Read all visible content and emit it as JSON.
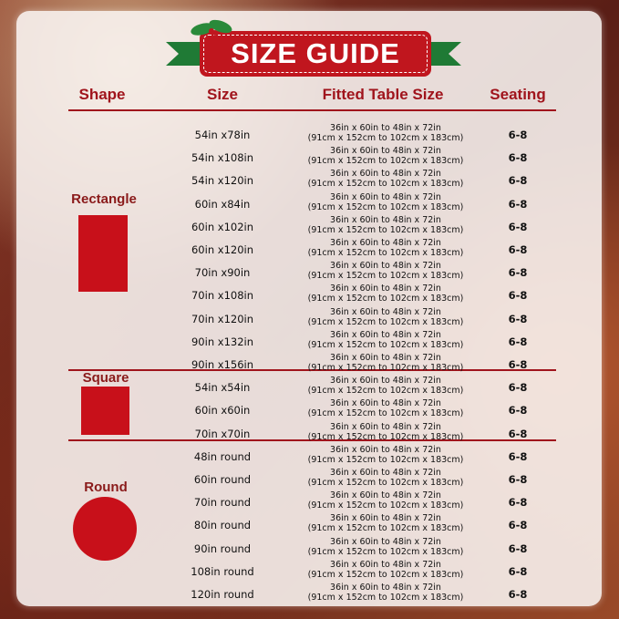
{
  "title": "SIZE GUIDE",
  "headers": {
    "shape": "Shape",
    "size": "Size",
    "fitted": "Fitted Table Size",
    "seating": "Seating"
  },
  "colors": {
    "accent": "#c0161e",
    "ribbon": "#1f7a35",
    "shape_fill": "#c8101a"
  },
  "groups": [
    {
      "label": "Rectangle",
      "shape": "rectangle",
      "rows": [
        {
          "size": "54in x78in",
          "fit1": "36in x 60in to 48in x 72in",
          "fit2": "(91cm x 152cm to 102cm x 183cm)",
          "seating": "6-8"
        },
        {
          "size": "54in x108in",
          "fit1": "36in x 60in to 48in x 72in",
          "fit2": "(91cm x 152cm to 102cm x 183cm)",
          "seating": "6-8"
        },
        {
          "size": "54in x120in",
          "fit1": "36in x 60in to 48in x 72in",
          "fit2": "(91cm x 152cm to 102cm x 183cm)",
          "seating": "6-8"
        },
        {
          "size": "60in x84in",
          "fit1": "36in x 60in to 48in x 72in",
          "fit2": "(91cm x 152cm to 102cm x 183cm)",
          "seating": "6-8"
        },
        {
          "size": "60in x102in",
          "fit1": "36in x 60in to 48in x 72in",
          "fit2": "(91cm x 152cm to 102cm x 183cm)",
          "seating": "6-8"
        },
        {
          "size": "60in x120in",
          "fit1": "36in x 60in to 48in x 72in",
          "fit2": "(91cm x 152cm to 102cm x 183cm)",
          "seating": "6-8"
        },
        {
          "size": "70in x90in",
          "fit1": "36in x 60in to 48in x 72in",
          "fit2": "(91cm x 152cm to 102cm x 183cm)",
          "seating": "6-8"
        },
        {
          "size": "70in x108in",
          "fit1": "36in x 60in to 48in x 72in",
          "fit2": "(91cm x 152cm to 102cm x 183cm)",
          "seating": "6-8"
        },
        {
          "size": "70in x120in",
          "fit1": "36in x 60in to 48in x 72in",
          "fit2": "(91cm x 152cm to 102cm x 183cm)",
          "seating": "6-8"
        },
        {
          "size": "90in x132in",
          "fit1": "36in x 60in to 48in x 72in",
          "fit2": "(91cm x 152cm to 102cm x 183cm)",
          "seating": "6-8"
        },
        {
          "size": "90in x156in",
          "fit1": "36in x 60in to 48in x 72in",
          "fit2": "(91cm x 152cm to 102cm x 183cm)",
          "seating": "6-8"
        }
      ]
    },
    {
      "label": "Square",
      "shape": "square",
      "rows": [
        {
          "size": "54in x54in",
          "fit1": "36in x 60in to 48in x 72in",
          "fit2": "(91cm x 152cm to 102cm x 183cm)",
          "seating": "6-8"
        },
        {
          "size": "60in x60in",
          "fit1": "36in x 60in to 48in x 72in",
          "fit2": "(91cm x 152cm to 102cm x 183cm)",
          "seating": "6-8"
        },
        {
          "size": "70in x70in",
          "fit1": "36in x 60in to 48in x 72in",
          "fit2": "(91cm x 152cm to 102cm x 183cm)",
          "seating": "6-8"
        }
      ]
    },
    {
      "label": "Round",
      "shape": "circle",
      "rows": [
        {
          "size": "48in round",
          "fit1": "36in x 60in to 48in x 72in",
          "fit2": "(91cm x 152cm to 102cm x 183cm)",
          "seating": "6-8"
        },
        {
          "size": "60in round",
          "fit1": "36in x 60in to 48in x 72in",
          "fit2": "(91cm x 152cm to 102cm x 183cm)",
          "seating": "6-8"
        },
        {
          "size": "70in round",
          "fit1": "36in x 60in to 48in x 72in",
          "fit2": "(91cm x 152cm to 102cm x 183cm)",
          "seating": "6-8"
        },
        {
          "size": "80in round",
          "fit1": "36in x 60in to 48in x 72in",
          "fit2": "(91cm x 152cm to 102cm x 183cm)",
          "seating": "6-8"
        },
        {
          "size": "90in round",
          "fit1": "36in x 60in to 48in x 72in",
          "fit2": "(91cm x 152cm to 102cm x 183cm)",
          "seating": "6-8"
        },
        {
          "size": "108in round",
          "fit1": "36in x 60in to 48in x 72in",
          "fit2": "(91cm x 152cm to 102cm x 183cm)",
          "seating": "6-8"
        },
        {
          "size": "120in round",
          "fit1": "36in x 60in to 48in x 72in",
          "fit2": "(91cm x 152cm to 102cm x 183cm)",
          "seating": "6-8"
        }
      ]
    }
  ]
}
